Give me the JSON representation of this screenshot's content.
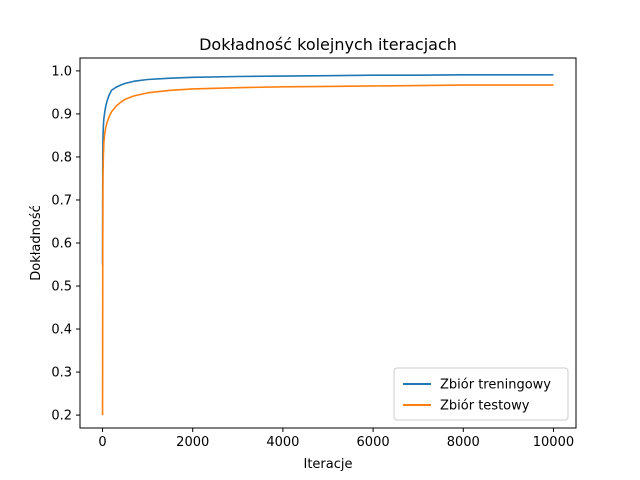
{
  "chart_data": {
    "type": "line",
    "title": "Dokładność kolejnych iteracjach",
    "xlabel": "Iteracje",
    "ylabel": "Dokładność",
    "xlim": [
      -500,
      10500
    ],
    "ylim": [
      0.17,
      1.03
    ],
    "xticks": [
      0,
      2000,
      4000,
      6000,
      8000,
      10000
    ],
    "xtick_labels": [
      "0",
      "2000",
      "4000",
      "6000",
      "8000",
      "10000"
    ],
    "yticks": [
      0.2,
      0.3,
      0.4,
      0.5,
      0.6,
      0.7,
      0.8,
      0.9,
      1.0
    ],
    "ytick_labels": [
      "0.2",
      "0.3",
      "0.4",
      "0.5",
      "0.6",
      "0.7",
      "0.8",
      "0.9",
      "1.0"
    ],
    "grid": false,
    "legend_position": "bottom-right",
    "series": [
      {
        "name": "Zbiór treningowy",
        "color": "#1f77b4",
        "x": [
          0,
          5,
          10,
          20,
          30,
          50,
          75,
          100,
          150,
          200,
          300,
          400,
          500,
          700,
          1000,
          1500,
          2000,
          3000,
          4000,
          5000,
          6000,
          7000,
          8000,
          9000,
          10000
        ],
        "y": [
          0.55,
          0.8,
          0.85,
          0.875,
          0.89,
          0.905,
          0.92,
          0.93,
          0.945,
          0.955,
          0.962,
          0.967,
          0.971,
          0.976,
          0.98,
          0.983,
          0.985,
          0.987,
          0.988,
          0.989,
          0.99,
          0.99,
          0.991,
          0.991,
          0.991
        ]
      },
      {
        "name": "Zbiór testowy",
        "color": "#ff7f0e",
        "x": [
          0,
          5,
          10,
          20,
          30,
          50,
          75,
          100,
          150,
          200,
          300,
          400,
          500,
          700,
          1000,
          1500,
          2000,
          3000,
          4000,
          5000,
          6000,
          7000,
          8000,
          9000,
          10000
        ],
        "y": [
          0.2,
          0.6,
          0.76,
          0.81,
          0.835,
          0.855,
          0.87,
          0.88,
          0.895,
          0.905,
          0.918,
          0.927,
          0.934,
          0.942,
          0.949,
          0.955,
          0.958,
          0.961,
          0.963,
          0.964,
          0.965,
          0.966,
          0.967,
          0.967,
          0.967
        ]
      }
    ]
  }
}
